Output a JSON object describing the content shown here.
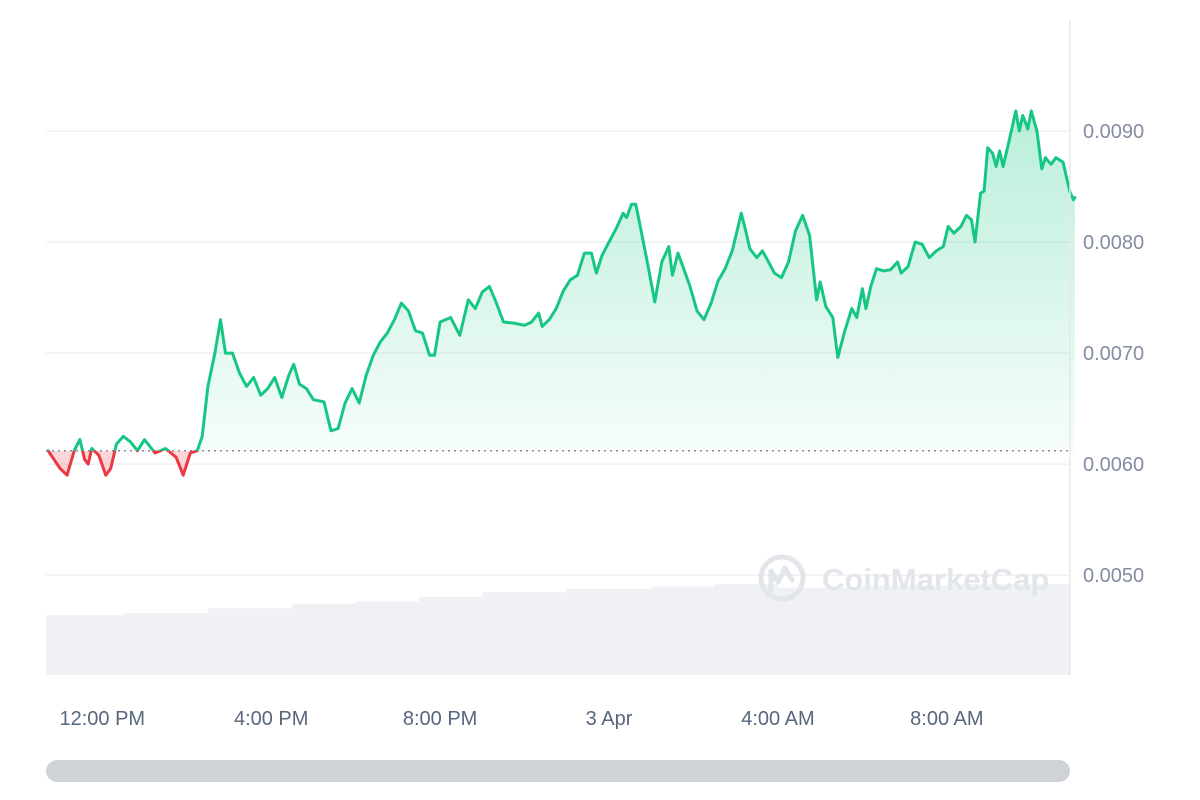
{
  "chart_data": {
    "type": "area",
    "title": "",
    "xlabel": "",
    "ylabel": "",
    "reference_price": 0.00612,
    "ylim": [
      0.0041,
      0.01
    ],
    "y_ticks": [
      0.005,
      0.006,
      0.007,
      0.008,
      0.009
    ],
    "y_tick_labels": [
      "0.0050",
      "0.0060",
      "0.0070",
      "0.0080",
      "0.0090"
    ],
    "x_range": [
      "2 Apr 10:40",
      "3 Apr 10:55"
    ],
    "x_ticks": [
      {
        "time": "2 Apr 12:00",
        "label": "12:00 PM"
      },
      {
        "time": "2 Apr 16:00",
        "label": "4:00 PM"
      },
      {
        "time": "2 Apr 20:00",
        "label": "8:00 PM"
      },
      {
        "time": "3 Apr 00:00",
        "label": "3 Apr"
      },
      {
        "time": "3 Apr 04:00",
        "label": "4:00 AM"
      },
      {
        "time": "3 Apr 08:00",
        "label": "8:00 AM"
      }
    ],
    "colors": {
      "up": "#16c784",
      "down": "#ea3943",
      "volume": "#eff1f4",
      "grid": "#eff1f4",
      "reference": "#858ca2"
    },
    "series": [
      {
        "values": [
          [
            "2 Apr 10:43",
            0.00612
          ],
          [
            "2 Apr 11:00",
            0.00596
          ],
          [
            "2 Apr 11:10",
            0.0059
          ],
          [
            "2 Apr 11:20",
            0.00612
          ],
          [
            "2 Apr 11:28",
            0.00622
          ],
          [
            "2 Apr 11:35",
            0.00604
          ],
          [
            "2 Apr 11:40",
            0.006
          ],
          [
            "2 Apr 11:45",
            0.00614
          ],
          [
            "2 Apr 11:55",
            0.00608
          ],
          [
            "2 Apr 12:05",
            0.0059
          ],
          [
            "2 Apr 12:12",
            0.00596
          ],
          [
            "2 Apr 12:20",
            0.00618
          ],
          [
            "2 Apr 12:30",
            0.00625
          ],
          [
            "2 Apr 12:40",
            0.0062
          ],
          [
            "2 Apr 12:50",
            0.00612
          ],
          [
            "2 Apr 13:00",
            0.00622
          ],
          [
            "2 Apr 13:15",
            0.0061
          ],
          [
            "2 Apr 13:30",
            0.00614
          ],
          [
            "2 Apr 13:45",
            0.00606
          ],
          [
            "2 Apr 13:55",
            0.0059
          ],
          [
            "2 Apr 14:05",
            0.0061
          ],
          [
            "2 Apr 14:15",
            0.00612
          ],
          [
            "2 Apr 14:22",
            0.00625
          ],
          [
            "2 Apr 14:30",
            0.0067
          ],
          [
            "2 Apr 14:40",
            0.007
          ],
          [
            "2 Apr 14:48",
            0.0073
          ],
          [
            "2 Apr 14:55",
            0.007
          ],
          [
            "2 Apr 15:05",
            0.007
          ],
          [
            "2 Apr 15:15",
            0.00682
          ],
          [
            "2 Apr 15:25",
            0.0067
          ],
          [
            "2 Apr 15:35",
            0.00678
          ],
          [
            "2 Apr 15:45",
            0.00662
          ],
          [
            "2 Apr 15:55",
            0.00668
          ],
          [
            "2 Apr 16:05",
            0.00678
          ],
          [
            "2 Apr 16:15",
            0.0066
          ],
          [
            "2 Apr 16:25",
            0.0068
          ],
          [
            "2 Apr 16:32",
            0.0069
          ],
          [
            "2 Apr 16:40",
            0.00672
          ],
          [
            "2 Apr 16:50",
            0.00668
          ],
          [
            "2 Apr 17:00",
            0.00658
          ],
          [
            "2 Apr 17:15",
            0.00656
          ],
          [
            "2 Apr 17:25",
            0.0063
          ],
          [
            "2 Apr 17:35",
            0.00632
          ],
          [
            "2 Apr 17:45",
            0.00655
          ],
          [
            "2 Apr 17:55",
            0.00668
          ],
          [
            "2 Apr 18:05",
            0.00655
          ],
          [
            "2 Apr 18:15",
            0.0068
          ],
          [
            "2 Apr 18:25",
            0.00698
          ],
          [
            "2 Apr 18:35",
            0.0071
          ],
          [
            "2 Apr 18:45",
            0.00718
          ],
          [
            "2 Apr 18:55",
            0.0073
          ],
          [
            "2 Apr 19:05",
            0.00745
          ],
          [
            "2 Apr 19:15",
            0.00738
          ],
          [
            "2 Apr 19:25",
            0.0072
          ],
          [
            "2 Apr 19:35",
            0.00718
          ],
          [
            "2 Apr 19:45",
            0.00698
          ],
          [
            "2 Apr 19:52",
            0.00698
          ],
          [
            "2 Apr 20:00",
            0.00728
          ],
          [
            "2 Apr 20:15",
            0.00732
          ],
          [
            "2 Apr 20:28",
            0.00716
          ],
          [
            "2 Apr 20:40",
            0.00748
          ],
          [
            "2 Apr 20:50",
            0.0074
          ],
          [
            "2 Apr 21:00",
            0.00755
          ],
          [
            "2 Apr 21:10",
            0.0076
          ],
          [
            "2 Apr 21:20",
            0.00745
          ],
          [
            "2 Apr 21:30",
            0.00728
          ],
          [
            "2 Apr 21:45",
            0.00727
          ],
          [
            "2 Apr 22:00",
            0.00725
          ],
          [
            "2 Apr 22:10",
            0.00728
          ],
          [
            "2 Apr 22:20",
            0.00736
          ],
          [
            "2 Apr 22:25",
            0.00724
          ],
          [
            "2 Apr 22:35",
            0.0073
          ],
          [
            "2 Apr 22:45",
            0.0074
          ],
          [
            "2 Apr 22:55",
            0.00756
          ],
          [
            "2 Apr 23:05",
            0.00766
          ],
          [
            "2 Apr 23:15",
            0.0077
          ],
          [
            "2 Apr 23:25",
            0.0079
          ],
          [
            "2 Apr 23:35",
            0.0079
          ],
          [
            "2 Apr 23:42",
            0.00772
          ],
          [
            "2 Apr 23:50",
            0.00788
          ],
          [
            "3 Apr 00:00",
            0.008
          ],
          [
            "3 Apr 00:10",
            0.00812
          ],
          [
            "3 Apr 00:20",
            0.00826
          ],
          [
            "3 Apr 00:25",
            0.00822
          ],
          [
            "3 Apr 00:32",
            0.00834
          ],
          [
            "3 Apr 00:38",
            0.00834
          ],
          [
            "3 Apr 00:45",
            0.00812
          ],
          [
            "3 Apr 00:55",
            0.0078
          ],
          [
            "3 Apr 01:05",
            0.00746
          ],
          [
            "3 Apr 01:15",
            0.00782
          ],
          [
            "3 Apr 01:25",
            0.00796
          ],
          [
            "3 Apr 01:30",
            0.0077
          ],
          [
            "3 Apr 01:38",
            0.0079
          ],
          [
            "3 Apr 01:45",
            0.00778
          ],
          [
            "3 Apr 01:55",
            0.0076
          ],
          [
            "3 Apr 02:05",
            0.00738
          ],
          [
            "3 Apr 02:15",
            0.0073
          ],
          [
            "3 Apr 02:25",
            0.00745
          ],
          [
            "3 Apr 02:35",
            0.00765
          ],
          [
            "3 Apr 02:45",
            0.00776
          ],
          [
            "3 Apr 02:55",
            0.00792
          ],
          [
            "3 Apr 03:02",
            0.0081
          ],
          [
            "3 Apr 03:08",
            0.00826
          ],
          [
            "3 Apr 03:15",
            0.00808
          ],
          [
            "3 Apr 03:20",
            0.00794
          ],
          [
            "3 Apr 03:30",
            0.00786
          ],
          [
            "3 Apr 03:38",
            0.00792
          ],
          [
            "3 Apr 03:45",
            0.00784
          ],
          [
            "3 Apr 03:55",
            0.00772
          ],
          [
            "3 Apr 04:05",
            0.00768
          ],
          [
            "3 Apr 04:15",
            0.00782
          ],
          [
            "3 Apr 04:25",
            0.0081
          ],
          [
            "3 Apr 04:35",
            0.00824
          ],
          [
            "3 Apr 04:45",
            0.00806
          ],
          [
            "3 Apr 04:55",
            0.00748
          ],
          [
            "3 Apr 05:00",
            0.00764
          ],
          [
            "3 Apr 05:08",
            0.00742
          ],
          [
            "3 Apr 05:18",
            0.00732
          ],
          [
            "3 Apr 05:25",
            0.00696
          ],
          [
            "3 Apr 05:35",
            0.0072
          ],
          [
            "3 Apr 05:45",
            0.0074
          ],
          [
            "3 Apr 05:52",
            0.00732
          ],
          [
            "3 Apr 06:00",
            0.00758
          ],
          [
            "3 Apr 06:05",
            0.0074
          ],
          [
            "3 Apr 06:12",
            0.0076
          ],
          [
            "3 Apr 06:20",
            0.00776
          ],
          [
            "3 Apr 06:30",
            0.00774
          ],
          [
            "3 Apr 06:40",
            0.00775
          ],
          [
            "3 Apr 06:50",
            0.00782
          ],
          [
            "3 Apr 06:55",
            0.00772
          ],
          [
            "3 Apr 07:05",
            0.00778
          ],
          [
            "3 Apr 07:15",
            0.008
          ],
          [
            "3 Apr 07:25",
            0.00798
          ],
          [
            "3 Apr 07:35",
            0.00786
          ],
          [
            "3 Apr 07:45",
            0.00792
          ],
          [
            "3 Apr 07:55",
            0.00796
          ],
          [
            "3 Apr 08:02",
            0.00814
          ],
          [
            "3 Apr 08:10",
            0.00808
          ],
          [
            "3 Apr 08:20",
            0.00814
          ],
          [
            "3 Apr 08:28",
            0.00824
          ],
          [
            "3 Apr 08:35",
            0.0082
          ],
          [
            "3 Apr 08:40",
            0.008
          ],
          [
            "3 Apr 08:48",
            0.00844
          ],
          [
            "3 Apr 08:53",
            0.00846
          ],
          [
            "3 Apr 08:58",
            0.00885
          ],
          [
            "3 Apr 09:05",
            0.0088
          ],
          [
            "3 Apr 09:10",
            0.00868
          ],
          [
            "3 Apr 09:15",
            0.00882
          ],
          [
            "3 Apr 09:20",
            0.00868
          ],
          [
            "3 Apr 09:28",
            0.0089
          ],
          [
            "3 Apr 09:33",
            0.00904
          ],
          [
            "3 Apr 09:38",
            0.00918
          ],
          [
            "3 Apr 09:43",
            0.009
          ],
          [
            "3 Apr 09:48",
            0.00914
          ],
          [
            "3 Apr 09:55",
            0.00902
          ],
          [
            "3 Apr 10:00",
            0.00918
          ],
          [
            "3 Apr 10:08",
            0.009
          ],
          [
            "3 Apr 10:15",
            0.00866
          ],
          [
            "3 Apr 10:20",
            0.00876
          ],
          [
            "3 Apr 10:28",
            0.0087
          ],
          [
            "3 Apr 10:35",
            0.00876
          ],
          [
            "3 Apr 10:45",
            0.00872
          ],
          [
            "3 Apr 10:55",
            0.00845
          ],
          [
            "3 Apr 11:00",
            0.00838
          ],
          [
            "3 Apr 11:02",
            0.0084
          ]
        ]
      }
    ],
    "volume": [
      {
        "from": "2 Apr 10:40",
        "value": 0.52
      },
      {
        "from": "2 Apr 12:30",
        "value": 0.54
      },
      {
        "from": "2 Apr 14:30",
        "value": 0.58
      },
      {
        "from": "2 Apr 16:30",
        "value": 0.62
      },
      {
        "from": "2 Apr 18:00",
        "value": 0.64
      },
      {
        "from": "2 Apr 19:30",
        "value": 0.68
      },
      {
        "from": "2 Apr 21:00",
        "value": 0.72
      },
      {
        "from": "2 Apr 23:00",
        "value": 0.75
      },
      {
        "from": "3 Apr 01:00",
        "value": 0.77
      },
      {
        "from": "3 Apr 02:30",
        "value": 0.79
      },
      {
        "from": "3 Apr 04:00",
        "value": 0.76
      },
      {
        "from": "3 Apr 06:00",
        "value": 0.78
      },
      {
        "from": "3 Apr 08:00",
        "value": 0.79
      },
      {
        "from": "3 Apr 10:00",
        "value": 0.79
      }
    ]
  },
  "watermark": {
    "text": "CoinMarketCap",
    "icon": "coinmarketcap-logo-icon"
  }
}
